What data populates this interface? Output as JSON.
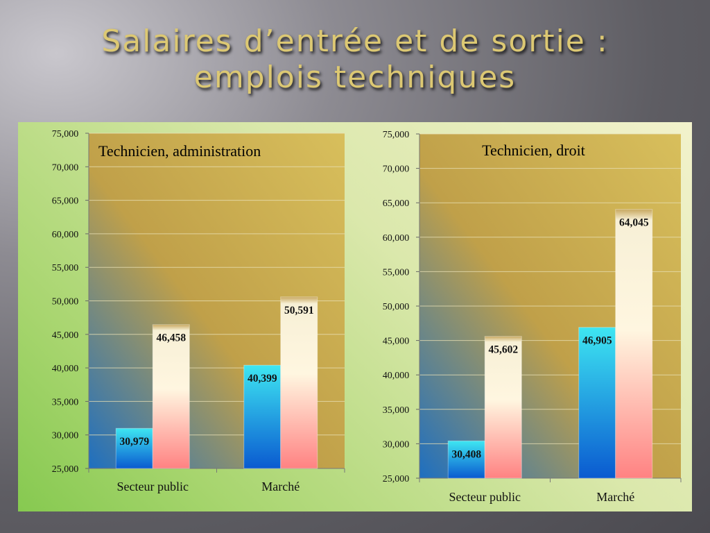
{
  "slide": {
    "title_line1": "Salaires d’entrée et de sortie :",
    "title_line2": "emplois techniques"
  },
  "colors": {
    "plot_gold": "#c0a049",
    "plot_blue": "#1e6fc0",
    "series1_top": "#3ee6f2",
    "series1_bottom": "#0a5ad0",
    "series2_top": "#f7f0d6",
    "series2_bottom": "#ff8282"
  },
  "chart_data": [
    {
      "type": "bar",
      "title": "Technicien, administration",
      "categories": [
        "Secteur public",
        "Marché"
      ],
      "series": [
        {
          "values": [
            30979,
            40399
          ]
        },
        {
          "values": [
            46458,
            50591
          ]
        }
      ],
      "value_labels": [
        [
          "30,979",
          "40,399"
        ],
        [
          "46,458",
          "50,591"
        ]
      ],
      "yticks": [
        "25,000",
        "30,000",
        "35,000",
        "40,000",
        "45,000",
        "50,000",
        "55,000",
        "60,000",
        "65,000",
        "70,000",
        "75,000"
      ],
      "ylim": [
        25000,
        75000
      ],
      "grid": true
    },
    {
      "type": "bar",
      "title": "Technicien, droit",
      "categories": [
        "Secteur public",
        "Marché"
      ],
      "series": [
        {
          "values": [
            30408,
            46905
          ]
        },
        {
          "values": [
            45602,
            64045
          ]
        }
      ],
      "value_labels": [
        [
          "30,408",
          "46,905"
        ],
        [
          "45,602",
          "64,045"
        ]
      ],
      "yticks": [
        "25,000",
        "30,000",
        "35,000",
        "40,000",
        "45,000",
        "50,000",
        "55,000",
        "60,000",
        "65,000",
        "70,000",
        "75,000"
      ],
      "ylim": [
        25000,
        75000
      ],
      "grid": true
    }
  ]
}
